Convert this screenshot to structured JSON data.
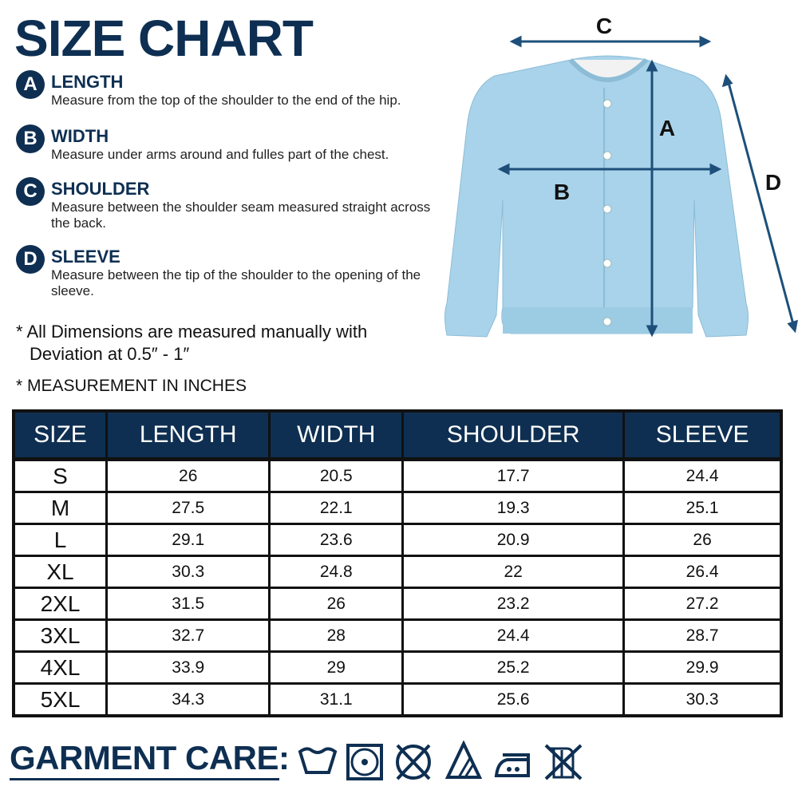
{
  "title": "SIZE CHART",
  "measurements": [
    {
      "letter": "A",
      "name": "LENGTH",
      "desc": "Measure from the top of the shoulder to the end of the hip."
    },
    {
      "letter": "B",
      "name": "WIDTH",
      "desc": "Measure under arms around and fulles part of the chest."
    },
    {
      "letter": "C",
      "name": "SHOULDER",
      "desc": "Measure between the shoulder seam measured straight across the back."
    },
    {
      "letter": "D",
      "name": "SLEEVE",
      "desc": "Measure between the tip of the shoulder to the opening of the sleeve."
    }
  ],
  "notes": {
    "deviation_line1": "* All Dimensions are measured manually with",
    "deviation_line2": "Deviation at 0.5″ - 1″",
    "units": "* MEASUREMENT IN INCHES"
  },
  "diagram_labels": {
    "a": "A",
    "b": "B",
    "c": "C",
    "d": "D"
  },
  "table": {
    "headers": [
      "SIZE",
      "LENGTH",
      "WIDTH",
      "SHOULDER",
      "SLEEVE"
    ],
    "rows": [
      [
        "S",
        "26",
        "20.5",
        "17.7",
        "24.4"
      ],
      [
        "M",
        "27.5",
        "22.1",
        "19.3",
        "25.1"
      ],
      [
        "L",
        "29.1",
        "23.6",
        "20.9",
        "26"
      ],
      [
        "XL",
        "30.3",
        "24.8",
        "22",
        "26.4"
      ],
      [
        "2XL",
        "31.5",
        "26",
        "23.2",
        "27.2"
      ],
      [
        "3XL",
        "32.7",
        "28",
        "24.4",
        "28.7"
      ],
      [
        "4XL",
        "33.9",
        "29",
        "25.2",
        "29.9"
      ],
      [
        "5XL",
        "34.3",
        "31.1",
        "25.6",
        "30.3"
      ]
    ]
  },
  "garment_care": {
    "label": "GARMENT CARE:",
    "icons": [
      "wash-basin-icon",
      "tumble-dry-low-icon",
      "do-not-dry-clean-icon",
      "bleach-non-chlorine-icon",
      "iron-medium-icon",
      "do-not-wring-icon"
    ]
  },
  "colors": {
    "navy": "#0e2f52",
    "garment": "#a9d3ea"
  }
}
